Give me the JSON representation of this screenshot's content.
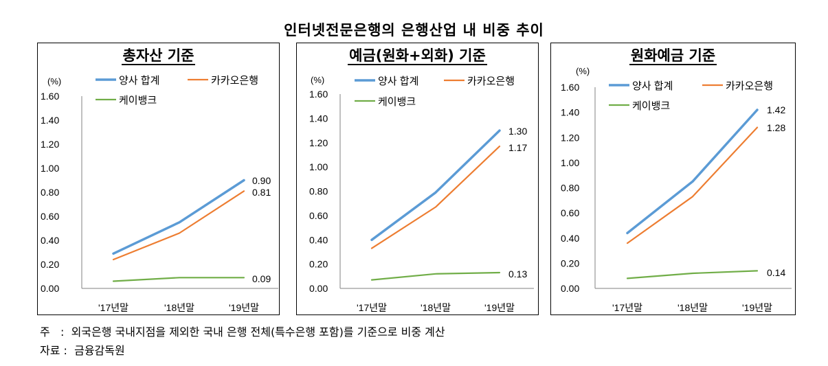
{
  "title": "인터넷전문은행의 은행산업 내 비중 추이",
  "colors": {
    "total": "#5B9BD5",
    "kakao": "#ED7D31",
    "kbank": "#70AD47"
  },
  "chart_data": [
    {
      "type": "line",
      "title": "총자산 기준",
      "unit": "(%)",
      "categories": [
        "'17년말",
        "'18년말",
        "'19년말"
      ],
      "ylim": [
        0,
        1.6
      ],
      "yticks": [
        "0.00",
        "0.20",
        "0.40",
        "0.60",
        "0.80",
        "1.00",
        "1.20",
        "1.40",
        "1.60"
      ],
      "series": [
        {
          "name": "양사 합계",
          "values": [
            0.29,
            0.55,
            0.9
          ],
          "end_label": "0.90"
        },
        {
          "name": "카카오은행",
          "values": [
            0.24,
            0.46,
            0.81
          ],
          "end_label": "0.81"
        },
        {
          "name": "케이뱅크",
          "values": [
            0.06,
            0.09,
            0.09
          ],
          "end_label": "0.09"
        }
      ]
    },
    {
      "type": "line",
      "title": "예금(원화+외화) 기준",
      "unit": "(%)",
      "categories": [
        "'17년말",
        "'18년말",
        "'19년말"
      ],
      "ylim": [
        0,
        1.6
      ],
      "yticks": [
        "0.00",
        "0.20",
        "0.40",
        "0.60",
        "0.80",
        "1.00",
        "1.20",
        "1.40",
        "1.60"
      ],
      "series": [
        {
          "name": "양사 합계",
          "values": [
            0.4,
            0.79,
            1.3
          ],
          "end_label": "1.30"
        },
        {
          "name": "카카오은행",
          "values": [
            0.33,
            0.67,
            1.17
          ],
          "end_label": "1.17"
        },
        {
          "name": "케이뱅크",
          "values": [
            0.07,
            0.12,
            0.13
          ],
          "end_label": "0.13"
        }
      ]
    },
    {
      "type": "line",
      "title": "원화예금 기준",
      "unit": "(%)",
      "categories": [
        "'17년말",
        "'18년말",
        "'19년말"
      ],
      "ylim": [
        0,
        1.6
      ],
      "yticks": [
        "0.00",
        "0.20",
        "0.40",
        "0.60",
        "0.80",
        "1.00",
        "1.20",
        "1.40",
        "1.60"
      ],
      "series": [
        {
          "name": "양사 합계",
          "values": [
            0.44,
            0.85,
            1.42
          ],
          "end_label": "1.42"
        },
        {
          "name": "카카오은행",
          "values": [
            0.36,
            0.73,
            1.28
          ],
          "end_label": "1.28"
        },
        {
          "name": "케이뱅크",
          "values": [
            0.08,
            0.12,
            0.14
          ],
          "end_label": "0.14"
        }
      ]
    }
  ],
  "notes": {
    "note_label": "주",
    "note_text": "외국은행 국내지점을 제외한 국내 은행 전체(특수은행 포함)를 기준으로 비중 계산",
    "source_label": "자료",
    "source_text": "금융감독원"
  }
}
